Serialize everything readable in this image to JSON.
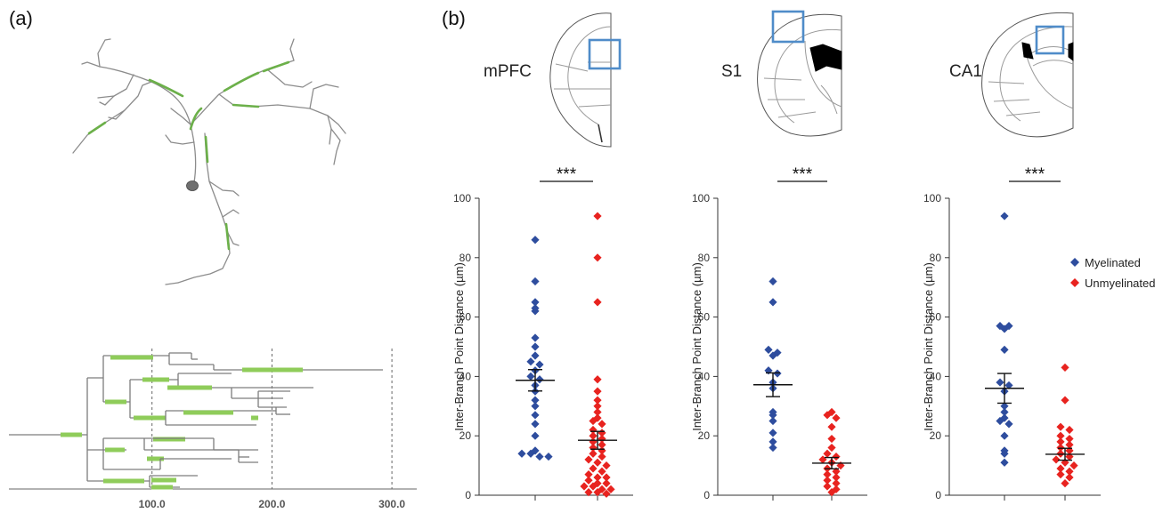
{
  "panels": {
    "a": "(a)",
    "b": "(b)"
  },
  "dendrogram": {
    "x_ticks": [
      "100.0",
      "200.0",
      "300.0"
    ],
    "x_tick_values": [
      100,
      200,
      300
    ]
  },
  "regions": [
    "mPFC",
    "S1",
    "CA1"
  ],
  "legend": {
    "myelinated": "Myelinated",
    "unmyelinated": "Unmyelinated"
  },
  "colors": {
    "myelinated": "#2e4d9e",
    "unmyelinated": "#e8231f",
    "myelin_segment": "#8fcc5a",
    "region_box": "#4f8cc9",
    "axis": "#333333"
  },
  "chart_data": [
    {
      "type": "scatter",
      "region": "mPFC",
      "significance": "***",
      "ylabel": "Inter-Branch Point Distance (µm)",
      "ylim": [
        0,
        100
      ],
      "yticks": [
        0,
        20,
        40,
        60,
        80,
        100
      ],
      "series": [
        {
          "name": "Myelinated",
          "values": [
            86,
            72,
            65,
            63,
            62,
            53,
            50,
            47,
            45,
            44,
            42,
            40,
            39,
            37,
            35,
            32,
            30,
            27,
            24,
            20,
            15,
            14,
            14,
            13,
            13
          ],
          "mean": 38.7,
          "sem": 3.6
        },
        {
          "name": "Unmyelinated",
          "values": [
            94,
            80,
            65,
            39,
            35,
            32,
            30,
            28,
            26,
            25,
            24,
            22,
            21,
            20,
            19,
            18,
            17,
            16,
            15,
            14,
            13,
            12,
            11,
            10,
            9,
            8,
            7,
            6,
            6,
            5,
            4,
            4,
            3,
            3,
            2,
            2,
            1,
            1,
            0.5
          ],
          "mean": 18.5,
          "sem": 3.0
        }
      ]
    },
    {
      "type": "scatter",
      "region": "S1",
      "significance": "***",
      "ylabel": "Inter-Branch Point Distance (µm)",
      "ylim": [
        0,
        100
      ],
      "yticks": [
        0,
        20,
        40,
        60,
        80,
        100
      ],
      "series": [
        {
          "name": "Myelinated",
          "values": [
            72,
            65,
            49,
            48,
            47,
            42,
            41,
            38,
            36,
            28,
            27,
            25,
            21,
            18,
            16
          ],
          "mean": 37.2,
          "sem": 4.0
        },
        {
          "name": "Unmyelinated",
          "values": [
            28,
            27,
            26,
            23,
            19,
            16,
            14,
            13,
            12,
            11,
            10,
            9,
            8,
            7,
            6,
            5,
            4,
            3,
            2,
            1
          ],
          "mean": 10.8,
          "sem": 1.9
        }
      ]
    },
    {
      "type": "scatter",
      "region": "CA1",
      "significance": "***",
      "ylabel": "Inter-Branch Point Distance (µm)",
      "ylim": [
        0,
        100
      ],
      "yticks": [
        0,
        20,
        40,
        60,
        80,
        100
      ],
      "legend_position": "top-right",
      "series": [
        {
          "name": "Myelinated",
          "values": [
            94,
            57,
            57,
            56,
            49,
            38,
            37,
            35,
            30,
            28,
            26,
            25,
            24,
            20,
            15,
            14,
            11
          ],
          "mean": 36.0,
          "sem": 5.0
        },
        {
          "name": "Unmyelinated",
          "values": [
            43,
            32,
            23,
            22,
            20,
            19,
            18,
            17,
            16,
            15,
            14,
            13,
            12,
            11,
            10,
            9,
            8,
            7,
            6,
            4
          ],
          "mean": 13.8,
          "sem": 2.0
        }
      ]
    }
  ]
}
